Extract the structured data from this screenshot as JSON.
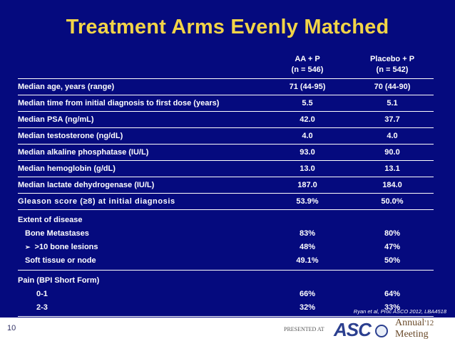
{
  "title": "Treatment Arms Evenly Matched",
  "columns": [
    {
      "line1": "AA + P",
      "line2": "(n = 546)"
    },
    {
      "line1": "Placebo + P",
      "line2": "(n = 542)"
    }
  ],
  "rows": [
    {
      "label": "Median age, years (range)",
      "aa": "71 (44-95)",
      "placebo": "70 (44-90)"
    },
    {
      "label": "Median time from initial diagnosis to first dose (years)",
      "aa": "5.5",
      "placebo": "5.1"
    },
    {
      "label": "Median PSA (ng/mL)",
      "aa": "42.0",
      "placebo": "37.7"
    },
    {
      "label": "Median testosterone (ng/dL)",
      "aa": "4.0",
      "placebo": "4.0"
    },
    {
      "label": "Median alkaline phosphatase (IU/L)",
      "aa": "93.0",
      "placebo": "90.0"
    },
    {
      "label": "Median hemoglobin (g/dL)",
      "aa": "13.0",
      "placebo": "13.1"
    },
    {
      "label": "Median lactate dehydrogenase (IU/L)",
      "aa": "187.0",
      "placebo": "184.0"
    },
    {
      "label": "Gleason score (≥8) at initial diagnosis",
      "aa": "53.9%",
      "placebo": "50.0%"
    }
  ],
  "extent": {
    "heading": "Extent of disease",
    "bone_label": "Bone Metastases",
    "bone_aa": "83%",
    "bone_placebo": "80%",
    "lesions_label": ">10 bone lesions",
    "lesions_aa": "48%",
    "lesions_placebo": "47%",
    "soft_label": "Soft tissue or node",
    "soft_aa": "49.1%",
    "soft_placebo": "50%"
  },
  "pain": {
    "heading": "Pain (BPI Short Form)",
    "r1_label": "0-1",
    "r1_aa": "66%",
    "r1_placebo": "64%",
    "r2_label": "2-3",
    "r2_aa": "32%",
    "r2_placebo": "33%"
  },
  "citation": "Ryan et al, Proc ASCO 2012, LBA4518",
  "slide_number": "10",
  "presented_at": "PRESENTED AT",
  "logo": {
    "asco": "ASC",
    "line1": "Annual",
    "year": "'12",
    "line2": "Meeting"
  },
  "colors": {
    "background": "#050a7e",
    "title": "#f2d447",
    "text": "#ffffff"
  }
}
